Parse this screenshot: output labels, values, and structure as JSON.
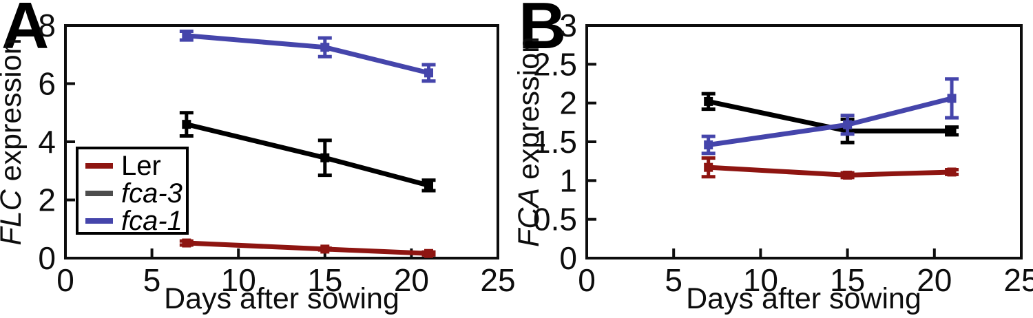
{
  "figure": {
    "background": "#ffffff",
    "panels": [
      {
        "letter": "A",
        "ylabel_italic": "FLC",
        "ylabel_rest": " expression",
        "xlabel": "Days after sowing"
      },
      {
        "letter": "B",
        "ylabel_italic": "FCA",
        "ylabel_rest": " expression",
        "xlabel": "Days after sowing"
      }
    ],
    "legend": {
      "entries": [
        {
          "label": "Ler",
          "italic": false,
          "color": "#8e1511"
        },
        {
          "label": "fca-3",
          "italic": true,
          "color": "#4d4d4d"
        },
        {
          "label": "fca-1",
          "italic": true,
          "color": "#4545ab"
        }
      ]
    }
  },
  "chart_data": [
    {
      "type": "line",
      "title": "A",
      "xlabel": "Days after sowing",
      "ylabel": "FLC expression",
      "x": [
        7,
        15,
        21
      ],
      "xlim": [
        0,
        25
      ],
      "ylim": [
        0,
        8
      ],
      "xticks": [
        0,
        5,
        10,
        15,
        20,
        25
      ],
      "yticks": [
        0,
        2,
        4,
        6,
        8
      ],
      "grid": false,
      "legend_position": "left-middle",
      "series": [
        {
          "name": "Ler",
          "color": "#8e1511",
          "values": [
            0.52,
            0.31,
            0.16
          ],
          "errors": [
            0.07,
            0.03,
            0.05
          ]
        },
        {
          "name": "fca-3",
          "color": "#000000",
          "values": [
            4.6,
            3.45,
            2.5
          ],
          "errors": [
            0.4,
            0.6,
            0.18
          ]
        },
        {
          "name": "fca-1",
          "color": "#4545ab",
          "values": [
            7.65,
            7.25,
            6.37
          ],
          "errors": [
            0.15,
            0.32,
            0.28
          ]
        }
      ]
    },
    {
      "type": "line",
      "title": "B",
      "xlabel": "Days after sowing",
      "ylabel": "FCA expression",
      "x": [
        7,
        15,
        21
      ],
      "xlim": [
        0,
        25
      ],
      "ylim": [
        0,
        3
      ],
      "xticks": [
        0,
        5,
        10,
        15,
        20,
        25
      ],
      "yticks": [
        0,
        0.5,
        1,
        1.5,
        2,
        2.5,
        3
      ],
      "grid": false,
      "legend_position": "none",
      "series": [
        {
          "name": "Ler",
          "color": "#8e1511",
          "values": [
            1.17,
            1.07,
            1.11
          ],
          "errors": [
            0.12,
            0.03,
            0.03
          ]
        },
        {
          "name": "fca-3",
          "color": "#000000",
          "values": [
            2.02,
            1.64,
            1.64
          ],
          "errors": [
            0.1,
            0.15,
            0.05
          ]
        },
        {
          "name": "fca-1",
          "color": "#4545ab",
          "values": [
            1.46,
            1.72,
            2.06
          ],
          "errors": [
            0.11,
            0.12,
            0.25
          ]
        }
      ]
    }
  ]
}
